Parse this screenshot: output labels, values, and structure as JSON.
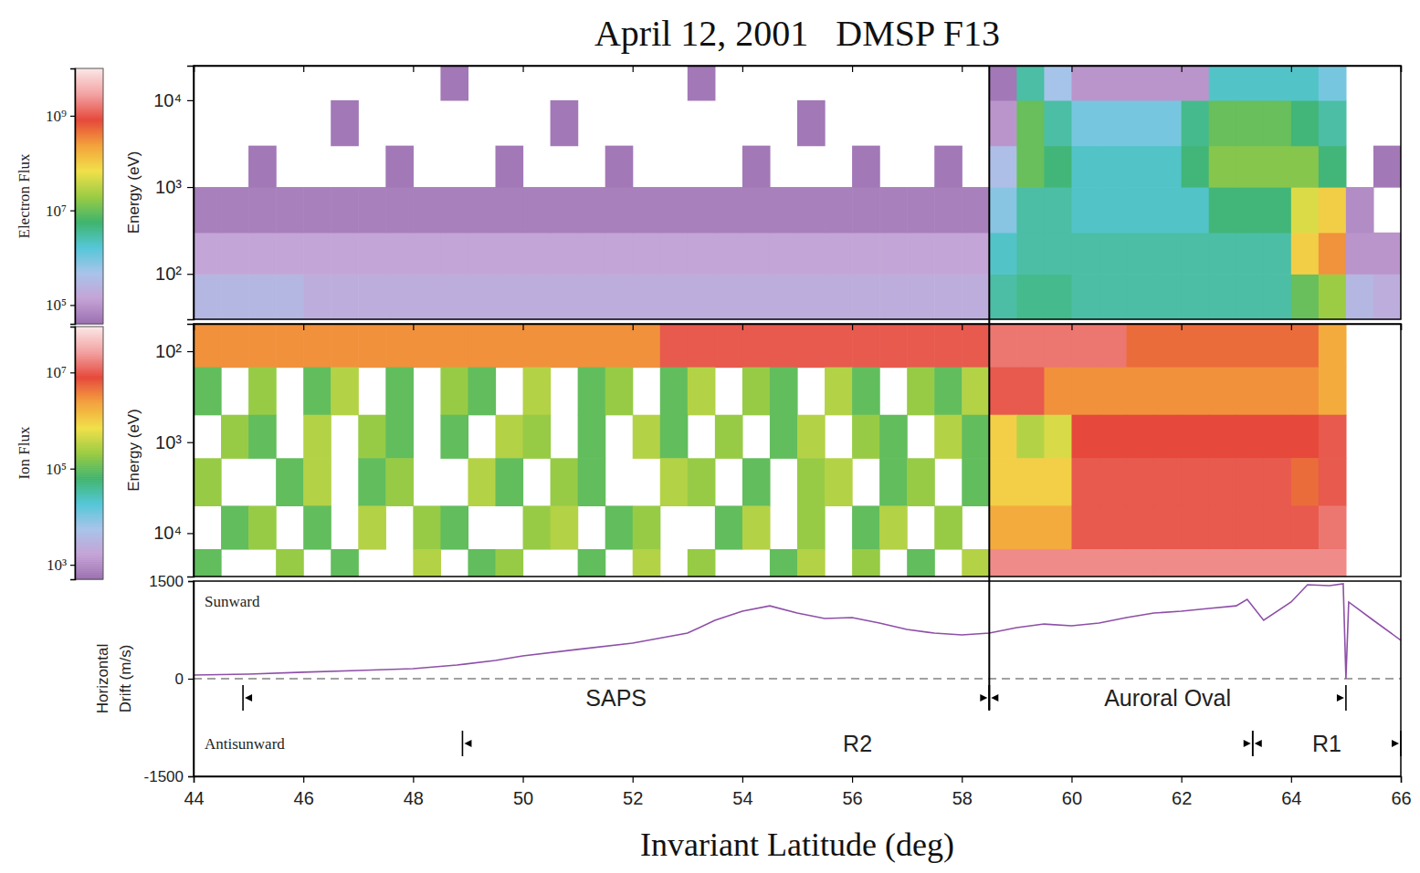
{
  "title": "April 12, 2001   DMSP F13",
  "chart_data": [
    {
      "type": "heatmap",
      "colorbar_label": "Electron Flux",
      "ylabel": "Energy (eV)",
      "log": "y",
      "tick_labels": "y",
      "xlim": [
        44,
        66
      ],
      "xticks": [
        44,
        46,
        48,
        50,
        52,
        54,
        56,
        58,
        60,
        62,
        64,
        66
      ],
      "ylim": [
        30,
        25000
      ],
      "yticks": [
        {
          "value": 100,
          "label": "10²"
        },
        {
          "value": 1000,
          "label": "10³"
        },
        {
          "value": 10000,
          "label": "10⁴"
        }
      ],
      "xbins": [
        44,
        44.5,
        45,
        45.5,
        46,
        46.5,
        47,
        47.5,
        48,
        48.5,
        49,
        49.5,
        50,
        50.5,
        51,
        51.5,
        52,
        52.5,
        53,
        53.5,
        54,
        54.5,
        55,
        55.5,
        56,
        56.5,
        57,
        57.5,
        58,
        58.5,
        59,
        59.5,
        60,
        60.5,
        61,
        61.5,
        62,
        62.5,
        63,
        63.5,
        64,
        64.5,
        65,
        65.5,
        66
      ],
      "ybins": [
        30,
        100,
        300,
        1000,
        3000,
        10000,
        25000
      ],
      "cells": [
        [
          300000.0,
          300000.0,
          300000.0,
          300000.0,
          200000.0,
          200000.0,
          200000.0,
          200000.0,
          200000.0,
          200000.0,
          200000.0,
          200000.0,
          200000.0,
          200000.0,
          200000.0,
          200000.0,
          200000.0,
          200000.0,
          200000.0,
          200000.0,
          200000.0,
          200000.0,
          200000.0,
          200000.0,
          200000.0,
          200000.0,
          200000.0,
          200000.0,
          200000.0,
          3000000.0,
          4000000.0,
          4000000.0,
          3000000.0,
          3000000.0,
          3000000.0,
          3000000.0,
          3000000.0,
          3000000.0,
          3000000.0,
          3000000.0,
          10000000.0,
          20000000.0,
          300000.0,
          200000.0
        ],
        [
          150000.0,
          150000.0,
          150000.0,
          150000.0,
          150000.0,
          150000.0,
          150000.0,
          150000.0,
          150000.0,
          150000.0,
          150000.0,
          150000.0,
          150000.0,
          150000.0,
          150000.0,
          150000.0,
          150000.0,
          150000.0,
          150000.0,
          150000.0,
          150000.0,
          150000.0,
          150000.0,
          150000.0,
          150000.0,
          150000.0,
          150000.0,
          150000.0,
          150000.0,
          2000000.0,
          3000000.0,
          3000000.0,
          3000000.0,
          3000000.0,
          3000000.0,
          3000000.0,
          3000000.0,
          3000000.0,
          3000000.0,
          3000000.0,
          100000000.0,
          300000000.0,
          100000.0,
          100000.0
        ],
        [
          60000.0,
          60000.0,
          60000.0,
          60000.0,
          60000.0,
          60000.0,
          60000.0,
          60000.0,
          60000.0,
          60000.0,
          60000.0,
          60000.0,
          60000.0,
          60000.0,
          60000.0,
          60000.0,
          60000.0,
          60000.0,
          60000.0,
          60000.0,
          60000.0,
          60000.0,
          60000.0,
          60000.0,
          60000.0,
          60000.0,
          60000.0,
          60000.0,
          60000.0,
          800000.0,
          3000000.0,
          3000000.0,
          2000000.0,
          2000000.0,
          2000000.0,
          2000000.0,
          2000000.0,
          5000000.0,
          5000000.0,
          5000000.0,
          50000000.0,
          100000000.0,
          80000.0,
          null
        ],
        [
          null,
          null,
          50000.0,
          null,
          null,
          null,
          null,
          50000.0,
          null,
          null,
          null,
          50000.0,
          null,
          null,
          null,
          50000.0,
          null,
          null,
          null,
          null,
          50000.0,
          null,
          null,
          null,
          50000.0,
          null,
          null,
          50000.0,
          null,
          400000.0,
          10000000.0,
          5000000.0,
          2000000.0,
          2000000.0,
          2000000.0,
          2000000.0,
          5000000.0,
          15000000.0,
          15000000.0,
          15000000.0,
          15000000.0,
          5000000.0,
          null,
          50000.0
        ],
        [
          null,
          null,
          null,
          null,
          null,
          50000.0,
          null,
          null,
          null,
          null,
          null,
          null,
          null,
          50000.0,
          null,
          null,
          null,
          null,
          null,
          null,
          null,
          null,
          50000.0,
          null,
          null,
          null,
          null,
          null,
          null,
          100000.0,
          10000000.0,
          3000000.0,
          1000000.0,
          1000000.0,
          1000000.0,
          1000000.0,
          4000000.0,
          10000000.0,
          10000000.0,
          10000000.0,
          5000000.0,
          3000000.0,
          null,
          null
        ],
        [
          null,
          null,
          null,
          null,
          null,
          null,
          null,
          null,
          null,
          50000.0,
          null,
          null,
          null,
          null,
          null,
          null,
          null,
          null,
          50000.0,
          null,
          null,
          null,
          null,
          null,
          null,
          null,
          null,
          null,
          null,
          50000.0,
          3000000.0,
          500000.0,
          100000.0,
          100000.0,
          100000.0,
          100000.0,
          100000.0,
          2000000.0,
          2000000.0,
          2000000.0,
          2000000.0,
          1000000.0,
          null,
          null
        ]
      ],
      "zlim": [
        40000.0,
        10000000000.0
      ],
      "zticks": [
        {
          "value": 100000.0,
          "label": "10⁵"
        },
        {
          "value": 10000000.0,
          "label": "10⁷"
        },
        {
          "value": 1000000000.0,
          "label": "10⁹"
        }
      ]
    },
    {
      "type": "heatmap",
      "colorbar_label": "Ion Flux",
      "ylabel": "Energy (eV)",
      "log": "y",
      "tick_labels": "y",
      "xlim": [
        44,
        66
      ],
      "xticks": [
        44,
        46,
        48,
        50,
        52,
        54,
        56,
        58,
        60,
        62,
        64,
        66
      ],
      "ylim": [
        30000,
        50
      ],
      "yticks": [
        {
          "value": 100,
          "label": "10²"
        },
        {
          "value": 1000,
          "label": "10³"
        },
        {
          "value": 10000,
          "label": "10⁴"
        }
      ],
      "xbins": [
        44,
        44.5,
        45,
        45.5,
        46,
        46.5,
        47,
        47.5,
        48,
        48.5,
        49,
        49.5,
        50,
        50.5,
        51,
        51.5,
        52,
        52.5,
        53,
        53.5,
        54,
        54.5,
        55,
        55.5,
        56,
        56.5,
        57,
        57.5,
        58,
        58.5,
        59,
        59.5,
        60,
        60.5,
        61,
        61.5,
        62,
        62.5,
        63,
        63.5,
        64,
        64.5,
        65,
        65.5,
        66
      ],
      "ybins": [
        50,
        150,
        500,
        1500,
        5000,
        15000,
        30000
      ],
      "cells": [
        [
          3000000.0,
          3000000.0,
          3000000.0,
          3000000.0,
          3000000.0,
          3000000.0,
          3000000.0,
          3000000.0,
          3000000.0,
          3000000.0,
          3000000.0,
          3000000.0,
          3000000.0,
          3000000.0,
          3000000.0,
          3000000.0,
          3000000.0,
          10000000.0,
          10000000.0,
          10000000.0,
          10000000.0,
          10000000.0,
          10000000.0,
          10000000.0,
          10000000.0,
          10000000.0,
          10000000.0,
          10000000.0,
          10000000.0,
          15000000.0,
          15000000.0,
          15000000.0,
          15000000.0,
          15000000.0,
          5000000.0,
          5000000.0,
          5000000.0,
          5000000.0,
          5000000.0,
          5000000.0,
          5000000.0,
          2000000.0,
          null,
          null
        ],
        [
          100000.0,
          null,
          200000.0,
          null,
          100000.0,
          300000.0,
          null,
          100000.0,
          null,
          200000.0,
          100000.0,
          null,
          300000.0,
          null,
          100000.0,
          200000.0,
          null,
          100000.0,
          300000.0,
          null,
          200000.0,
          100000.0,
          null,
          300000.0,
          100000.0,
          null,
          200000.0,
          100000.0,
          300000.0,
          10000000.0,
          10000000.0,
          3000000.0,
          3000000.0,
          3000000.0,
          3000000.0,
          3000000.0,
          3000000.0,
          3000000.0,
          3000000.0,
          3000000.0,
          3000000.0,
          2000000.0,
          null,
          null
        ],
        [
          null,
          200000.0,
          100000.0,
          null,
          300000.0,
          null,
          200000.0,
          100000.0,
          null,
          100000.0,
          null,
          300000.0,
          200000.0,
          null,
          100000.0,
          null,
          300000.0,
          100000.0,
          null,
          200000.0,
          null,
          100000.0,
          300000.0,
          null,
          200000.0,
          100000.0,
          null,
          300000.0,
          100000.0,
          1000000.0,
          300000.0,
          500000.0,
          8000000.0,
          8000000.0,
          8000000.0,
          8000000.0,
          8000000.0,
          8000000.0,
          8000000.0,
          8000000.0,
          8000000.0,
          10000000.0,
          null,
          null
        ],
        [
          200000.0,
          null,
          null,
          100000.0,
          300000.0,
          null,
          100000.0,
          200000.0,
          null,
          null,
          300000.0,
          100000.0,
          null,
          200000.0,
          100000.0,
          null,
          null,
          300000.0,
          200000.0,
          null,
          100000.0,
          null,
          200000.0,
          300000.0,
          null,
          100000.0,
          200000.0,
          null,
          100000.0,
          1000000.0,
          1000000.0,
          1000000.0,
          10000000.0,
          10000000.0,
          10000000.0,
          10000000.0,
          10000000.0,
          10000000.0,
          10000000.0,
          10000000.0,
          5000000.0,
          10000000.0,
          null,
          null
        ],
        [
          null,
          100000.0,
          200000.0,
          null,
          100000.0,
          null,
          300000.0,
          null,
          200000.0,
          100000.0,
          null,
          null,
          200000.0,
          300000.0,
          null,
          100000.0,
          200000.0,
          null,
          null,
          100000.0,
          300000.0,
          null,
          200000.0,
          null,
          100000.0,
          300000.0,
          null,
          200000.0,
          null,
          2000000.0,
          2000000.0,
          2000000.0,
          10000000.0,
          10000000.0,
          10000000.0,
          10000000.0,
          10000000.0,
          10000000.0,
          10000000.0,
          10000000.0,
          10000000.0,
          15000000.0,
          null,
          null
        ],
        [
          100000.0,
          null,
          null,
          200000.0,
          null,
          100000.0,
          null,
          null,
          300000.0,
          null,
          100000.0,
          200000.0,
          null,
          null,
          100000.0,
          null,
          300000.0,
          null,
          200000.0,
          null,
          null,
          100000.0,
          300000.0,
          null,
          200000.0,
          null,
          100000.0,
          null,
          300000.0,
          20000000.0,
          20000000.0,
          20000000.0,
          20000000.0,
          20000000.0,
          20000000.0,
          20000000.0,
          20000000.0,
          20000000.0,
          20000000.0,
          20000000.0,
          20000000.0,
          20000000.0,
          null,
          null
        ]
      ],
      "zlim": [
        500,
        90000000.0
      ],
      "zticks": [
        {
          "value": 1000.0,
          "label": "10³"
        },
        {
          "value": 100000.0,
          "label": "10⁵"
        },
        {
          "value": 10000000.0,
          "label": "10⁷"
        }
      ]
    },
    {
      "type": "line",
      "ylabel": "Horizontal Drift (m/s)",
      "xlabel": "Invariant Latitude (deg)",
      "color": "#8e4fa8",
      "xlim": [
        44,
        66
      ],
      "xticks": [
        44,
        46,
        48,
        50,
        52,
        54,
        56,
        58,
        60,
        62,
        64,
        66
      ],
      "ylim": [
        -1500,
        1500
      ],
      "yticks": [
        -1500,
        0,
        1500
      ],
      "x": [
        44,
        45,
        46,
        47,
        48,
        48.8,
        49.5,
        50,
        51,
        52,
        53,
        53.5,
        54,
        54.5,
        55,
        55.5,
        56,
        56.5,
        57,
        57.5,
        58,
        58.5,
        59,
        59.5,
        60,
        60.5,
        61,
        61.5,
        62,
        62.5,
        63,
        63.2,
        63.5,
        64,
        64.3,
        64.7,
        64.95,
        65,
        65.05,
        65.5,
        66
      ],
      "values": [
        56,
        70,
        100,
        126,
        154,
        210,
        280,
        350,
        450,
        546,
        700,
        897,
        1037,
        1120,
        1009,
        925,
        940,
        855,
        757,
        700,
        673,
        700,
        785,
        840,
        813,
        855,
        940,
        1009,
        1037,
        1080,
        1120,
        1220,
        897,
        1178,
        1444,
        1430,
        1458,
        0,
        1178,
        897,
        590
      ],
      "reference_line": {
        "value": 0,
        "line_style": "dashed"
      },
      "direction_labels": [
        "Sunward",
        "Antisunward"
      ],
      "boundary": 58.5,
      "regions": [
        {
          "label": "SAPS",
          "start": 44.9,
          "end": 58.5
        },
        {
          "label": "Auroral Oval",
          "start": 58.5,
          "end": 65.0
        }
      ],
      "current_regions": [
        {
          "label": "R2",
          "start": 48.9,
          "end": 63.3
        },
        {
          "label": "R1",
          "start": 63.3,
          "end": 66
        }
      ]
    }
  ]
}
